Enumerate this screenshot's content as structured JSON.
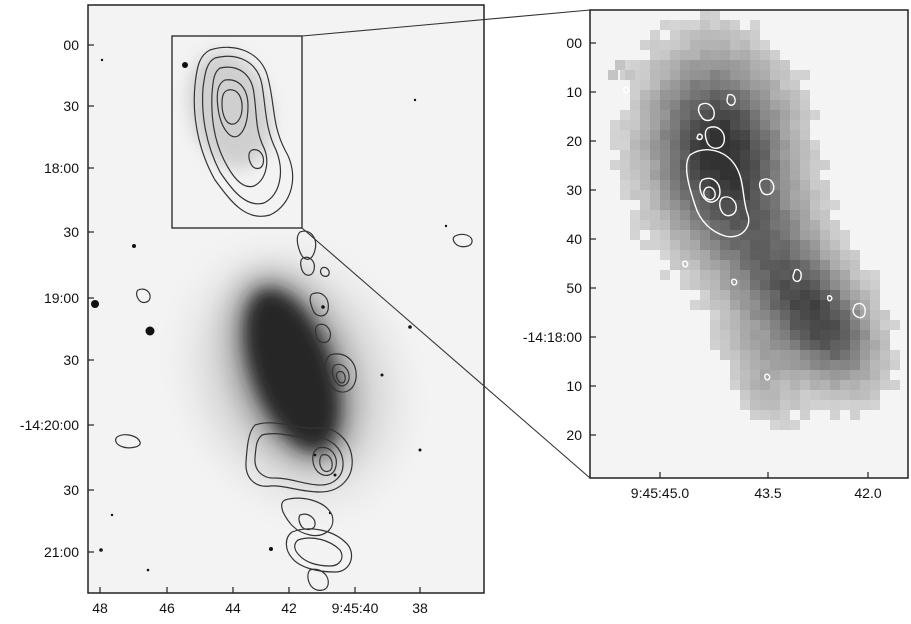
{
  "left_panel": {
    "y_tick_labels": [
      "00",
      "30",
      "18:00",
      "30",
      "19:00",
      "30",
      "-14:20:00",
      "30",
      "21:00"
    ],
    "x_tick_labels": [
      "48",
      "46",
      "44",
      "42",
      "9:45:40",
      "38"
    ]
  },
  "right_panel": {
    "y_tick_labels": [
      "00",
      "10",
      "20",
      "30",
      "40",
      "50",
      "-14:18:00",
      "10",
      "20"
    ],
    "x_tick_labels": [
      "9:45:45.0",
      "43.5",
      "42.0"
    ]
  },
  "colors": {
    "frame": "#222222",
    "contour_dark": "#333333",
    "contour_light": "#ffffff",
    "background": "#ffffff"
  }
}
